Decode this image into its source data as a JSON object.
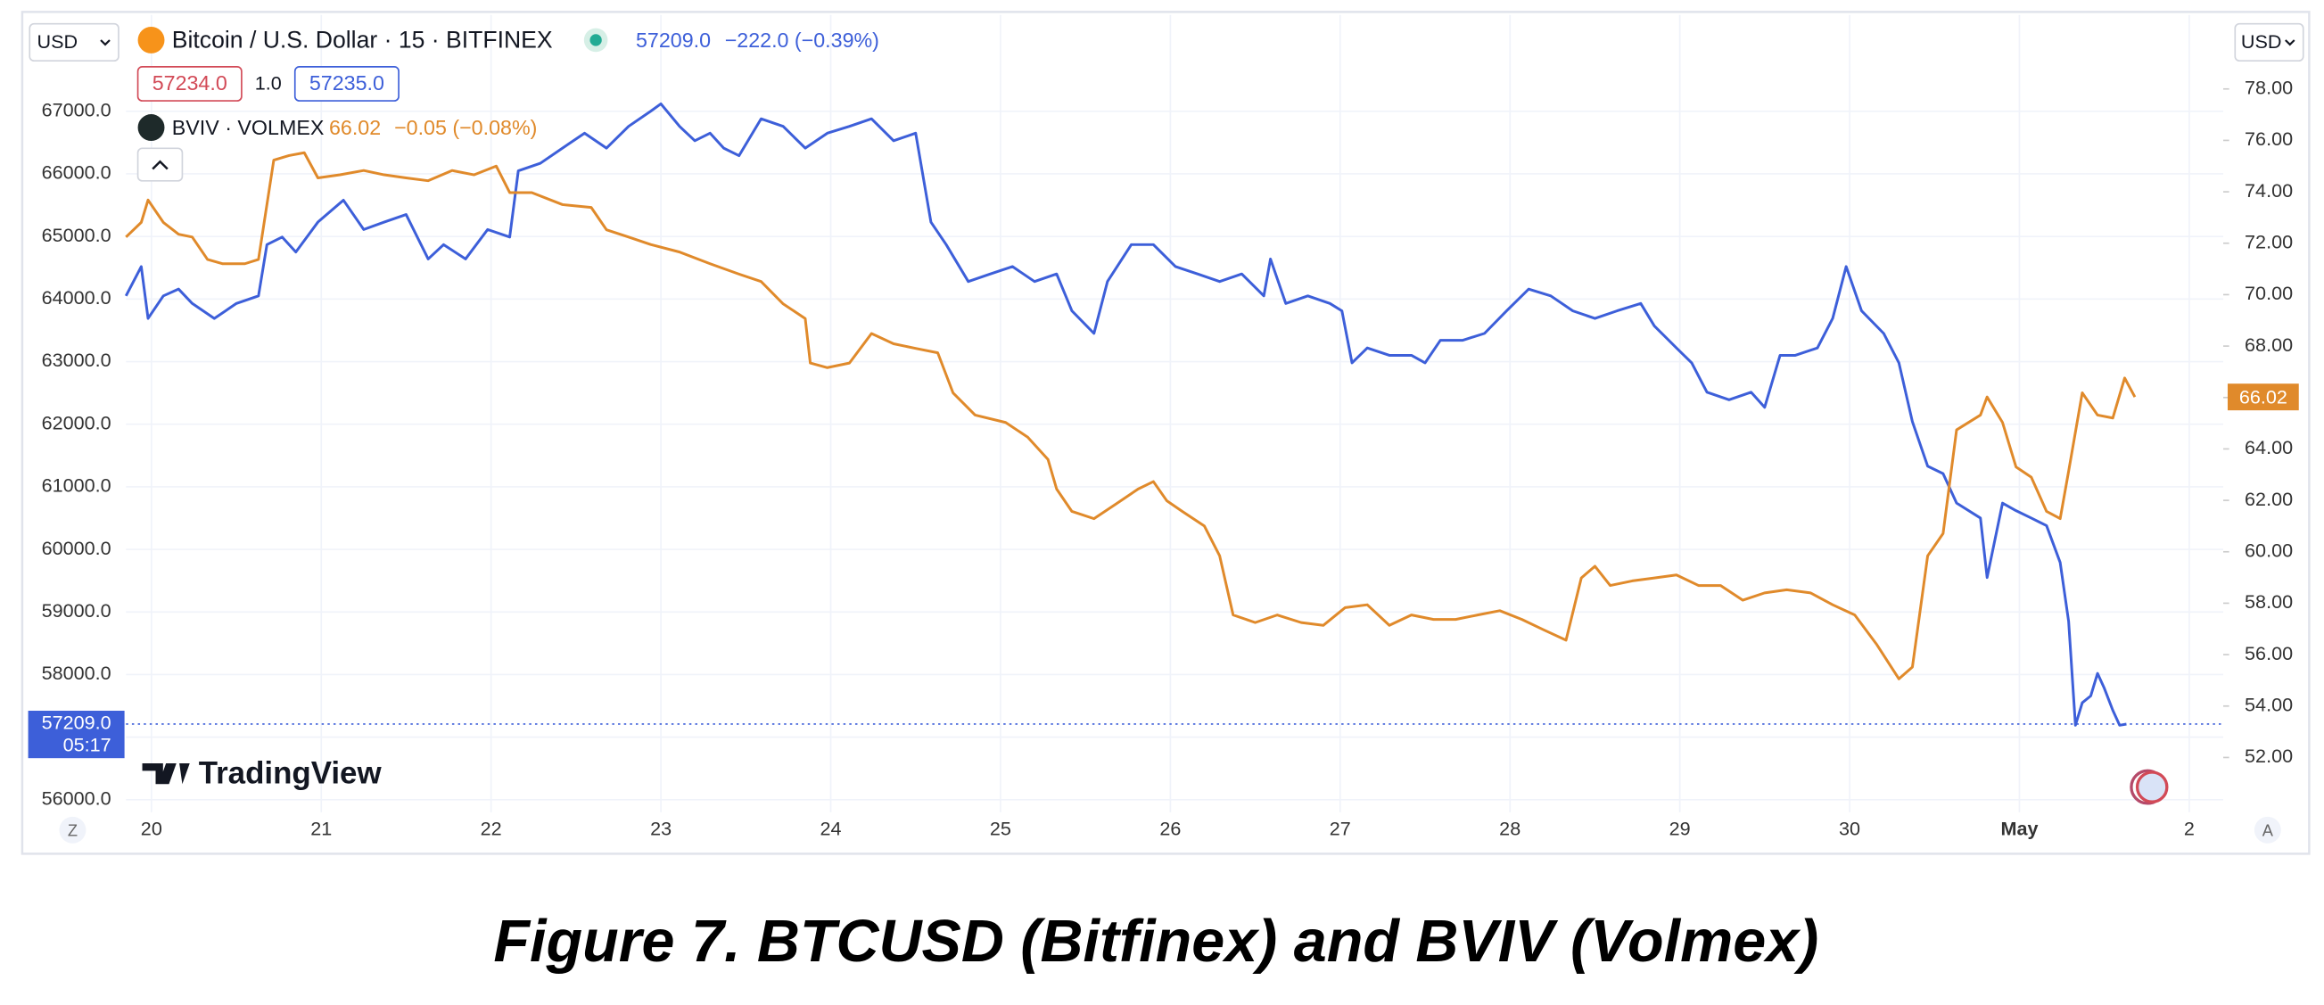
{
  "chart_data": {
    "type": "line",
    "caption": "Figure 7. BTCUSD (Bitfinex) and BVIV (Volmex)",
    "currency_left": "USD",
    "currency_right": "USD",
    "watermark": "TradingView",
    "buttons": [
      "Z",
      "A"
    ],
    "grid": true,
    "xlim": [
      -0.15,
      12.2
    ],
    "xticks": [
      {
        "value": 0,
        "label": "20"
      },
      {
        "value": 1,
        "label": "21"
      },
      {
        "value": 2,
        "label": "22"
      },
      {
        "value": 3,
        "label": "23"
      },
      {
        "value": 4,
        "label": "24"
      },
      {
        "value": 5,
        "label": "25"
      },
      {
        "value": 6,
        "label": "26"
      },
      {
        "value": 7,
        "label": "27"
      },
      {
        "value": 8,
        "label": "28"
      },
      {
        "value": 9,
        "label": "29"
      },
      {
        "value": 10,
        "label": "30"
      },
      {
        "value": 11,
        "label": "May"
      },
      {
        "value": 12,
        "label": "2"
      }
    ],
    "ylim": [
      55800,
      68540
    ],
    "yticks": [
      {
        "value": 56000,
        "label": "56000.0"
      },
      {
        "value": 57000,
        "label": "57000.0"
      },
      {
        "value": 58000,
        "label": "58000.0"
      },
      {
        "value": 59000,
        "label": "59000.0"
      },
      {
        "value": 60000,
        "label": "60000.0"
      },
      {
        "value": 61000,
        "label": "61000.0"
      },
      {
        "value": 62000,
        "label": "62000.0"
      },
      {
        "value": 63000,
        "label": "63000.0"
      },
      {
        "value": 64000,
        "label": "64000.0"
      },
      {
        "value": 65000,
        "label": "65000.0"
      },
      {
        "value": 66000,
        "label": "66000.0"
      },
      {
        "value": 67000,
        "label": "67000.0"
      }
    ],
    "y2lim": [
      49.87,
      80.88
    ],
    "y2ticks": [
      {
        "value": 52,
        "label": "52.00"
      },
      {
        "value": 54,
        "label": "54.00"
      },
      {
        "value": 56,
        "label": "56.00"
      },
      {
        "value": 58,
        "label": "58.00"
      },
      {
        "value": 60,
        "label": "60.00"
      },
      {
        "value": 62,
        "label": "62.00"
      },
      {
        "value": 64,
        "label": "64.00"
      },
      {
        "value": 66,
        "label": "66.00"
      },
      {
        "value": 68,
        "label": "68.00"
      },
      {
        "value": 70,
        "label": "70.00"
      },
      {
        "value": 72,
        "label": "72.00"
      },
      {
        "value": 74,
        "label": "74.00"
      },
      {
        "value": 76,
        "label": "76.00"
      },
      {
        "value": 78,
        "label": "78.00"
      }
    ],
    "series": [
      {
        "name": "Bitcoin / U.S. Dollar · 15 · BITFINEX",
        "color": "#3d5fd9",
        "axis": "y",
        "last": "57209.0",
        "change": "−222.0 (−0.39%)",
        "bid": "57234.0",
        "spread": "1.0",
        "ask": "57235.0",
        "tag": {
          "value": 57209,
          "label": "57209.0",
          "time": "05:17"
        },
        "x": [
          -0.15,
          -0.06,
          -0.02,
          0.07,
          0.16,
          0.24,
          0.37,
          0.5,
          0.63,
          0.68,
          0.77,
          0.85,
          0.98,
          1.13,
          1.25,
          1.37,
          1.5,
          1.63,
          1.72,
          1.85,
          1.98,
          2.11,
          2.16,
          2.29,
          2.42,
          2.55,
          2.68,
          2.81,
          2.94,
          3.0,
          3.11,
          3.2,
          3.29,
          3.37,
          3.46,
          3.59,
          3.72,
          3.85,
          3.98,
          4.11,
          4.24,
          4.37,
          4.5,
          4.59,
          4.68,
          4.81,
          4.94,
          5.07,
          5.2,
          5.33,
          5.42,
          5.55,
          5.63,
          5.77,
          5.9,
          6.03,
          6.16,
          6.29,
          6.42,
          6.55,
          6.59,
          6.68,
          6.81,
          6.94,
          7.01,
          7.07,
          7.16,
          7.29,
          7.42,
          7.5,
          7.59,
          7.72,
          7.85,
          7.98,
          8.11,
          8.24,
          8.37,
          8.5,
          8.63,
          8.77,
          8.85,
          8.98,
          9.07,
          9.16,
          9.29,
          9.42,
          9.5,
          9.59,
          9.68,
          9.81,
          9.9,
          9.98,
          10.07,
          10.2,
          10.29,
          10.37,
          10.46,
          10.55,
          10.63,
          10.77,
          10.81,
          10.9,
          10.98,
          11.07,
          11.16,
          11.24,
          11.29,
          11.33,
          11.37,
          11.42,
          11.46,
          11.5,
          11.55,
          11.59,
          11.63
        ],
        "values": [
          64050,
          64520,
          63690,
          64050,
          64160,
          63930,
          63690,
          63930,
          64050,
          64870,
          64990,
          64750,
          65230,
          65580,
          65110,
          65230,
          65350,
          64640,
          64870,
          64640,
          65110,
          64990,
          66050,
          66170,
          66410,
          66650,
          66410,
          66760,
          67000,
          67120,
          66760,
          66530,
          66650,
          66410,
          66290,
          66880,
          66760,
          66410,
          66650,
          66760,
          66880,
          66530,
          66650,
          65230,
          64870,
          64280,
          64400,
          64520,
          64280,
          64400,
          63810,
          63450,
          64280,
          64870,
          64870,
          64520,
          64400,
          64280,
          64400,
          64050,
          64640,
          63930,
          64050,
          63930,
          63810,
          62980,
          63220,
          63100,
          63100,
          62980,
          63340,
          63340,
          63450,
          63810,
          64160,
          64050,
          63810,
          63690,
          63810,
          63930,
          63570,
          63220,
          62980,
          62510,
          62390,
          62510,
          62270,
          63100,
          63100,
          63220,
          63690,
          64520,
          63810,
          63450,
          62980,
          62040,
          61330,
          61210,
          60740,
          60500,
          59550,
          60740,
          60620,
          60500,
          60380,
          59790,
          58850,
          57190,
          57550,
          57660,
          58020,
          57780,
          57430,
          57190,
          57209
        ]
      },
      {
        "name": "BVIV · VOLMEX",
        "color": "#e08a2b",
        "axis": "y2",
        "last": "66.02",
        "change": "−0.05 (−0.08%)",
        "tag": {
          "value": 66.02,
          "label": "66.02"
        },
        "x": [
          -0.15,
          -0.06,
          -0.02,
          0.07,
          0.16,
          0.24,
          0.33,
          0.42,
          0.55,
          0.63,
          0.72,
          0.81,
          0.9,
          0.98,
          1.11,
          1.25,
          1.37,
          1.5,
          1.63,
          1.77,
          1.9,
          2.03,
          2.11,
          2.24,
          2.42,
          2.59,
          2.68,
          2.81,
          2.94,
          3.11,
          3.29,
          3.46,
          3.59,
          3.72,
          3.85,
          3.88,
          3.98,
          4.11,
          4.24,
          4.37,
          4.5,
          4.63,
          4.72,
          4.85,
          5.03,
          5.16,
          5.28,
          5.33,
          5.42,
          5.55,
          5.68,
          5.81,
          5.9,
          5.98,
          6.07,
          6.2,
          6.29,
          6.37,
          6.5,
          6.63,
          6.77,
          6.9,
          7.03,
          7.16,
          7.29,
          7.42,
          7.55,
          7.68,
          7.81,
          7.94,
          8.07,
          8.2,
          8.33,
          8.42,
          8.5,
          8.59,
          8.72,
          8.85,
          8.98,
          9.11,
          9.24,
          9.37,
          9.5,
          9.63,
          9.77,
          9.9,
          10.03,
          10.16,
          10.29,
          10.37,
          10.46,
          10.55,
          10.63,
          10.77,
          10.81,
          10.9,
          10.98,
          11.07,
          11.16,
          11.24,
          11.29,
          11.37,
          11.46,
          11.55,
          11.62,
          11.68
        ],
        "values": [
          72.24,
          72.81,
          73.68,
          72.81,
          72.35,
          72.24,
          71.37,
          71.2,
          71.2,
          71.37,
          75.23,
          75.41,
          75.52,
          74.54,
          74.66,
          74.83,
          74.66,
          74.54,
          74.43,
          74.83,
          74.66,
          75.0,
          73.97,
          73.97,
          73.5,
          73.39,
          72.52,
          72.24,
          71.95,
          71.66,
          71.2,
          70.8,
          70.51,
          69.64,
          69.07,
          67.34,
          67.16,
          67.34,
          68.49,
          68.09,
          67.91,
          67.74,
          66.18,
          65.32,
          65.03,
          64.46,
          63.59,
          62.44,
          61.57,
          61.29,
          61.86,
          62.44,
          62.73,
          61.98,
          61.57,
          61.0,
          59.84,
          57.54,
          57.25,
          57.54,
          57.25,
          57.14,
          57.83,
          57.94,
          57.14,
          57.54,
          57.37,
          57.37,
          57.54,
          57.71,
          57.37,
          56.96,
          56.56,
          58.98,
          59.44,
          58.69,
          58.87,
          58.98,
          59.1,
          58.69,
          58.69,
          58.12,
          58.4,
          58.52,
          58.4,
          57.94,
          57.54,
          56.39,
          55.06,
          55.52,
          59.84,
          60.71,
          64.74,
          65.32,
          66.02,
          65.03,
          63.3,
          62.9,
          61.57,
          61.29,
          63.13,
          66.18,
          65.32,
          65.2,
          66.76,
          66.02
        ]
      }
    ]
  }
}
